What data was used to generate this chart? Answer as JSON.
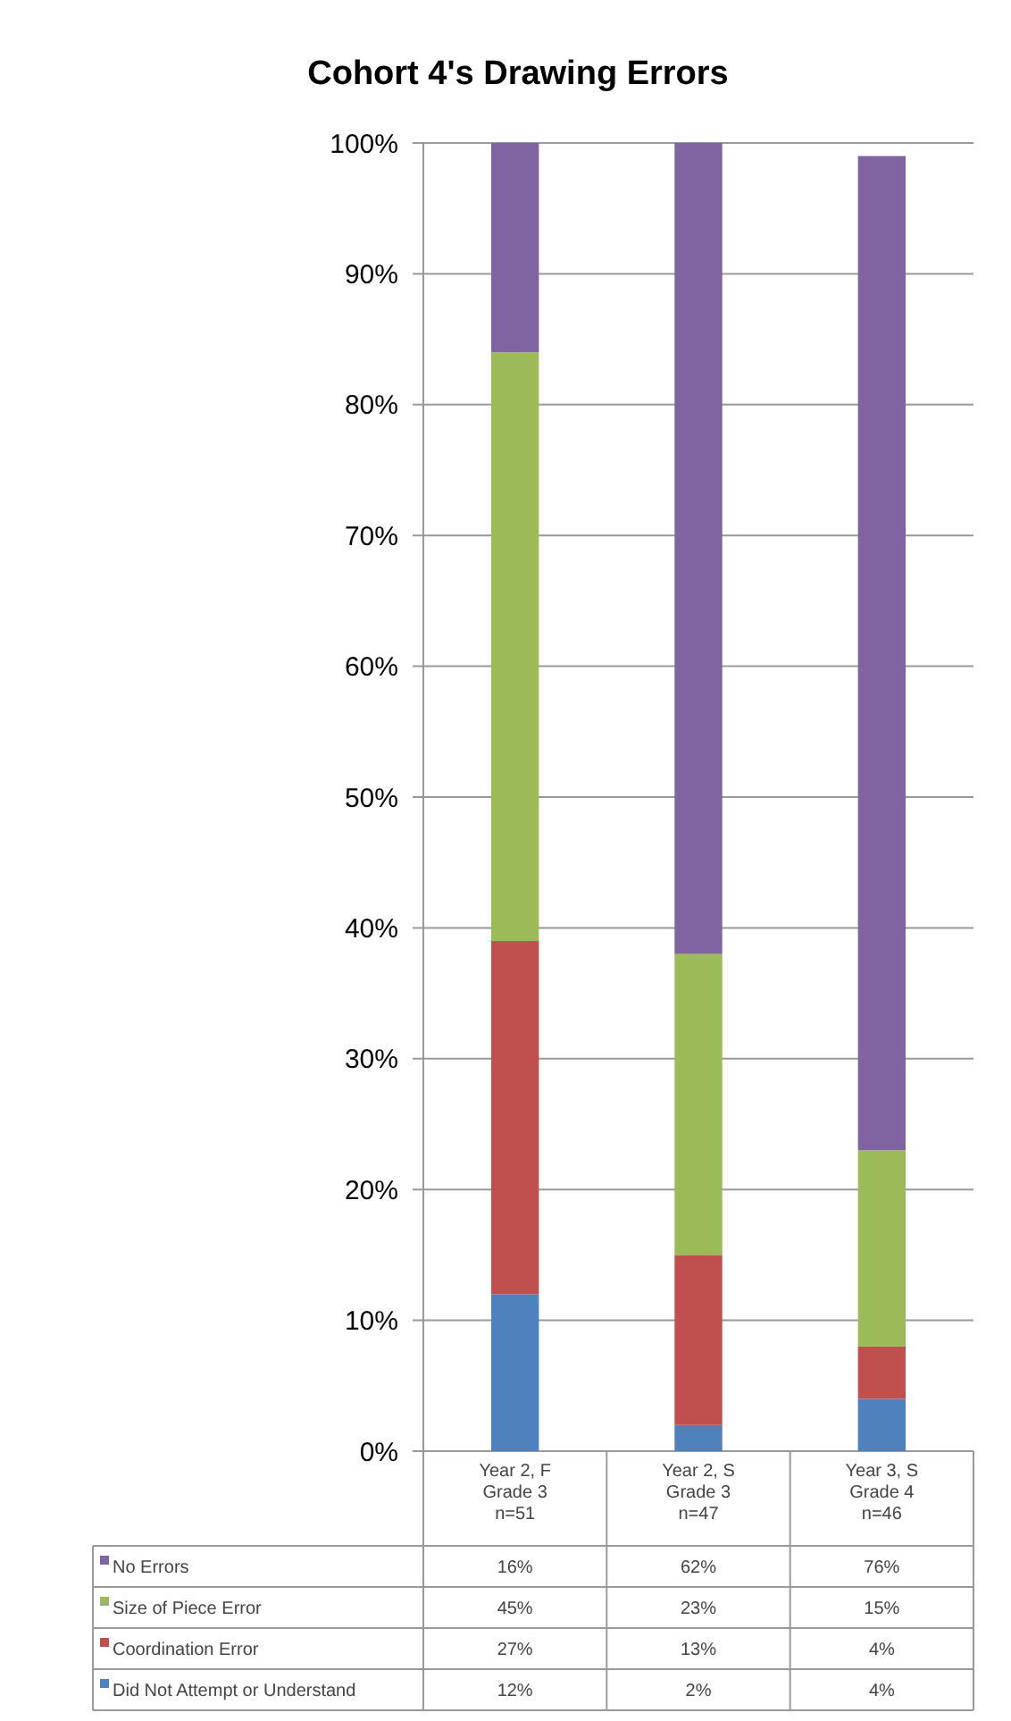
{
  "chart_data": {
    "type": "bar",
    "stacked": true,
    "title": "Cohort 4's Drawing Errors",
    "categories": [
      "Year 2, F\nGrade 3\nn=51",
      "Year 2, S\nGrade 3\nn=47",
      "Year 3, S\nGrade 4\nn=46"
    ],
    "series": [
      {
        "name": "Did Not Attempt or Understand",
        "color": "#4f81bd",
        "values": [
          12,
          2,
          4
        ]
      },
      {
        "name": "Coordination Error",
        "color": "#c0504d",
        "values": [
          27,
          13,
          4
        ]
      },
      {
        "name": "Size of Piece Error",
        "color": "#9bbb59",
        "values": [
          45,
          23,
          15
        ]
      },
      {
        "name": "No Errors",
        "color": "#8064a2",
        "values": [
          16,
          62,
          76
        ]
      }
    ],
    "ylim": [
      0,
      100
    ],
    "yticks": [
      {
        "value": 0,
        "label": "0%"
      },
      {
        "value": 10,
        "label": "10%"
      },
      {
        "value": 20,
        "label": "20%"
      },
      {
        "value": 30,
        "label": "30%"
      },
      {
        "value": 40,
        "label": "40%"
      },
      {
        "value": 50,
        "label": "50%"
      },
      {
        "value": 60,
        "label": "60%"
      },
      {
        "value": 70,
        "label": "70%"
      },
      {
        "value": 80,
        "label": "80%"
      },
      {
        "value": 90,
        "label": "90%"
      },
      {
        "value": 100,
        "label": "100%"
      }
    ],
    "grid": "y",
    "legend": "bottom",
    "value_labels": [
      [
        "12%",
        "2%",
        "4%"
      ],
      [
        "27%",
        "13%",
        "4%"
      ],
      [
        "45%",
        "23%",
        "15%"
      ],
      [
        "16%",
        "62%",
        "76%"
      ]
    ]
  }
}
